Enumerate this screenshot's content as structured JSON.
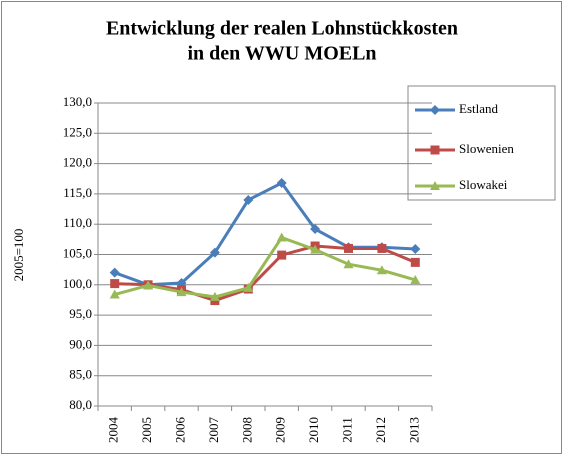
{
  "chart_data": {
    "type": "line",
    "title": [
      "Entwicklung der realen Lohnstückkosten",
      "in den WWU MOELn"
    ],
    "y_label": "2005=100",
    "categories": [
      "2004",
      "2005",
      "2006",
      "2007",
      "2008",
      "2009",
      "2010",
      "2011",
      "2012",
      "2013"
    ],
    "series": [
      {
        "name": "Estland",
        "color": "#4a7ebb",
        "marker": "diamond",
        "values": [
          102.0,
          100.0,
          100.3,
          105.3,
          114.0,
          116.8,
          109.2,
          106.2,
          106.2,
          105.9
        ]
      },
      {
        "name": "Slowenien",
        "color": "#be4b48",
        "marker": "square",
        "values": [
          100.2,
          100.0,
          99.2,
          97.4,
          99.3,
          104.9,
          106.4,
          106.0,
          106.0,
          103.7
        ]
      },
      {
        "name": "Slowakei",
        "color": "#98b954",
        "marker": "triangle",
        "values": [
          98.4,
          99.9,
          98.8,
          98.0,
          99.5,
          107.8,
          105.8,
          103.4,
          102.4,
          100.8
        ]
      }
    ],
    "ylim": [
      80,
      130
    ],
    "yticks": [
      {
        "value": 80,
        "label": "80,0"
      },
      {
        "value": 85,
        "label": "85,0"
      },
      {
        "value": 90,
        "label": "90,0"
      },
      {
        "value": 95,
        "label": "95,0"
      },
      {
        "value": 100,
        "label": "100,0"
      },
      {
        "value": 105,
        "label": "105,0"
      },
      {
        "value": 110,
        "label": "110,0"
      },
      {
        "value": 115,
        "label": "115,0"
      },
      {
        "value": 120,
        "label": "120,0"
      },
      {
        "value": 125,
        "label": "125,0"
      },
      {
        "value": 130,
        "label": "130,0"
      }
    ],
    "grid": true,
    "legend": "right"
  }
}
